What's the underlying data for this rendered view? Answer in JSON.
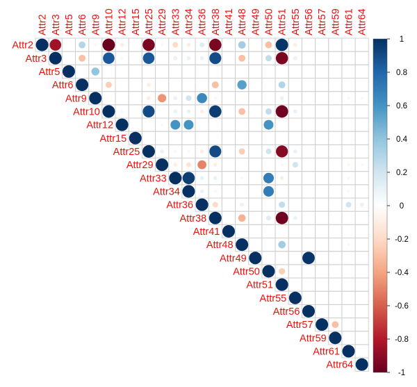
{
  "chart_data": {
    "type": "heatmap",
    "subtype": "correlation-matrix-upper-circles",
    "labels": [
      "Attr2",
      "Attr3",
      "Attr5",
      "Attr6",
      "Attr9",
      "Attr10",
      "Attr12",
      "Attr15",
      "Attr25",
      "Attr29",
      "Attr33",
      "Attr34",
      "Attr36",
      "Attr38",
      "Attr41",
      "Attr48",
      "Attr49",
      "Attr50",
      "Attr51",
      "Attr55",
      "Attr56",
      "Attr57",
      "Attr59",
      "Attr61",
      "Attr64"
    ],
    "label_color": "#e8120c",
    "grid_color": "#d0d0d0",
    "diagonal_value": 1,
    "off_diagonal": [
      [
        "Attr2",
        "Attr3",
        -0.85
      ],
      [
        "Attr2",
        "Attr6",
        0.3
      ],
      [
        "Attr2",
        "Attr9",
        0.05
      ],
      [
        "Attr2",
        "Attr10",
        -1.0
      ],
      [
        "Attr2",
        "Attr12",
        -0.1
      ],
      [
        "Attr2",
        "Attr25",
        -0.95
      ],
      [
        "Attr2",
        "Attr29",
        -0.05
      ],
      [
        "Attr2",
        "Attr33",
        -0.2
      ],
      [
        "Attr2",
        "Attr34",
        -0.1
      ],
      [
        "Attr2",
        "Attr36",
        0.15
      ],
      [
        "Attr2",
        "Attr38",
        -0.95
      ],
      [
        "Attr2",
        "Attr48",
        0.35
      ],
      [
        "Attr2",
        "Attr50",
        -0.3
      ],
      [
        "Attr2",
        "Attr51",
        0.98
      ],
      [
        "Attr2",
        "Attr55",
        -0.1
      ],
      [
        "Attr3",
        "Attr6",
        -0.3
      ],
      [
        "Attr3",
        "Attr10",
        0.85
      ],
      [
        "Attr3",
        "Attr12",
        0.05
      ],
      [
        "Attr3",
        "Attr25",
        0.85
      ],
      [
        "Attr3",
        "Attr33",
        0.1
      ],
      [
        "Attr3",
        "Attr34",
        0.1
      ],
      [
        "Attr3",
        "Attr36",
        0.1
      ],
      [
        "Attr3",
        "Attr38",
        0.9
      ],
      [
        "Attr3",
        "Attr48",
        -0.3
      ],
      [
        "Attr3",
        "Attr50",
        0.25
      ],
      [
        "Attr3",
        "Attr51",
        -0.95
      ],
      [
        "Attr3",
        "Attr55",
        0.1
      ],
      [
        "Attr5",
        "Attr9",
        0.4
      ],
      [
        "Attr6",
        "Attr10",
        -0.25
      ],
      [
        "Attr6",
        "Attr25",
        -0.1
      ],
      [
        "Attr6",
        "Attr38",
        -0.3
      ],
      [
        "Attr6",
        "Attr48",
        0.55
      ],
      [
        "Attr6",
        "Attr51",
        0.3
      ],
      [
        "Attr9",
        "Attr25",
        -0.1
      ],
      [
        "Attr9",
        "Attr29",
        -0.45
      ],
      [
        "Attr9",
        "Attr33",
        0.1
      ],
      [
        "Attr9",
        "Attr34",
        0.2
      ],
      [
        "Attr9",
        "Attr36",
        0.65
      ],
      [
        "Attr9",
        "Attr38",
        0.05
      ],
      [
        "Attr9",
        "Attr51",
        0.1
      ],
      [
        "Attr9",
        "Attr61",
        0.05
      ],
      [
        "Attr9",
        "Attr64",
        0.05
      ],
      [
        "Attr10",
        "Attr12",
        0.05
      ],
      [
        "Attr10",
        "Attr25",
        0.9
      ],
      [
        "Attr10",
        "Attr33",
        0.1
      ],
      [
        "Attr10",
        "Attr34",
        0.1
      ],
      [
        "Attr10",
        "Attr36",
        -0.1
      ],
      [
        "Attr10",
        "Attr38",
        0.95
      ],
      [
        "Attr10",
        "Attr48",
        -0.3
      ],
      [
        "Attr10",
        "Attr50",
        0.25
      ],
      [
        "Attr10",
        "Attr51",
        -0.98
      ],
      [
        "Attr10",
        "Attr55",
        0.1
      ],
      [
        "Attr12",
        "Attr29",
        0.05
      ],
      [
        "Attr12",
        "Attr33",
        0.6
      ],
      [
        "Attr12",
        "Attr34",
        0.6
      ],
      [
        "Attr12",
        "Attr50",
        0.6
      ],
      [
        "Attr25",
        "Attr29",
        0.1
      ],
      [
        "Attr25",
        "Attr33",
        0.05
      ],
      [
        "Attr25",
        "Attr34",
        0.05
      ],
      [
        "Attr25",
        "Attr36",
        -0.1
      ],
      [
        "Attr25",
        "Attr38",
        0.9
      ],
      [
        "Attr25",
        "Attr48",
        -0.25
      ],
      [
        "Attr25",
        "Attr50",
        0.2
      ],
      [
        "Attr25",
        "Attr51",
        -0.92
      ],
      [
        "Attr25",
        "Attr55",
        0.1
      ],
      [
        "Attr29",
        "Attr33",
        -0.1
      ],
      [
        "Attr29",
        "Attr34",
        -0.15
      ],
      [
        "Attr29",
        "Attr36",
        -0.5
      ],
      [
        "Attr29",
        "Attr38",
        -0.1
      ],
      [
        "Attr29",
        "Attr51",
        -0.05
      ],
      [
        "Attr29",
        "Attr55",
        0.2
      ],
      [
        "Attr29",
        "Attr61",
        -0.05
      ],
      [
        "Attr29",
        "Attr64",
        -0.05
      ],
      [
        "Attr33",
        "Attr34",
        0.95
      ],
      [
        "Attr33",
        "Attr36",
        0.1
      ],
      [
        "Attr33",
        "Attr38",
        0.1
      ],
      [
        "Attr33",
        "Attr48",
        0.05
      ],
      [
        "Attr33",
        "Attr50",
        0.7
      ],
      [
        "Attr33",
        "Attr51",
        -0.1
      ],
      [
        "Attr33",
        "Attr61",
        0.05
      ],
      [
        "Attr34",
        "Attr36",
        0.1
      ],
      [
        "Attr34",
        "Attr38",
        0.05
      ],
      [
        "Attr34",
        "Attr50",
        0.7
      ],
      [
        "Attr34",
        "Attr61",
        0.05
      ],
      [
        "Attr36",
        "Attr38",
        -0.2
      ],
      [
        "Attr36",
        "Attr48",
        0.1
      ],
      [
        "Attr36",
        "Attr51",
        0.25
      ],
      [
        "Attr36",
        "Attr61",
        0.2
      ],
      [
        "Attr36",
        "Attr64",
        0.1
      ],
      [
        "Attr38",
        "Attr48",
        -0.35
      ],
      [
        "Attr38",
        "Attr50",
        0.15
      ],
      [
        "Attr38",
        "Attr51",
        -0.98
      ],
      [
        "Attr38",
        "Attr55",
        0.1
      ],
      [
        "Attr48",
        "Attr51",
        0.35
      ],
      [
        "Attr48",
        "Attr61",
        0.05
      ],
      [
        "Attr49",
        "Attr56",
        0.98
      ],
      [
        "Attr50",
        "Attr51",
        -0.25
      ],
      [
        "Attr57",
        "Attr59",
        -0.3
      ]
    ],
    "colorbar": {
      "range": [
        -1,
        1
      ],
      "ticks": [
        1,
        0.8,
        0.6,
        0.4,
        0.2,
        0,
        -0.2,
        -0.4,
        -0.6,
        -0.8,
        -1
      ],
      "tick_labels": [
        "1",
        "0.8",
        "0.6",
        "0.4",
        "0.2",
        "0",
        "-0.2",
        "-0.4",
        "-0.6",
        "-0.8",
        "-1"
      ],
      "stops": [
        "#67001f",
        "#b2182b",
        "#d6604d",
        "#f4a582",
        "#fddbc7",
        "#ffffff",
        "#d1e5f0",
        "#92c5de",
        "#4393c3",
        "#2166ac",
        "#053061"
      ]
    },
    "title": "",
    "legend_position": "right"
  }
}
